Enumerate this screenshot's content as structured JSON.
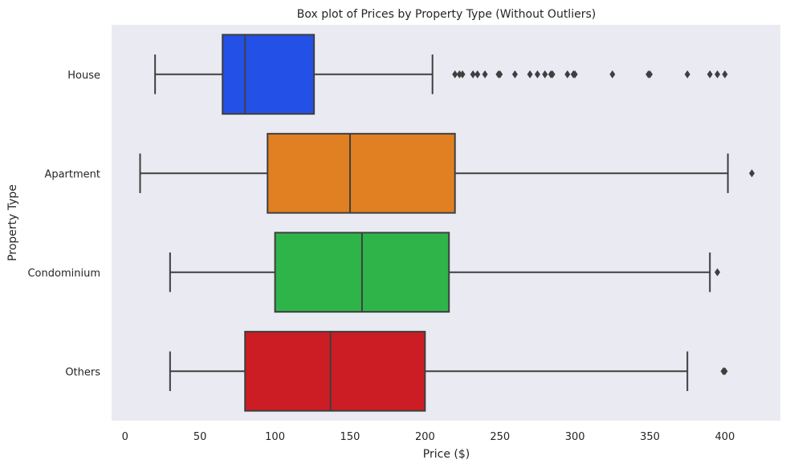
{
  "chart_data": {
    "type": "boxplot",
    "orientation": "horizontal",
    "title": "Box plot of Prices by Property Type (Without Outliers)",
    "xlabel": "Price ($)",
    "ylabel": "Property Type",
    "xlim": [
      -9,
      437
    ],
    "xticks": [
      0,
      50,
      100,
      150,
      200,
      250,
      300,
      350,
      400
    ],
    "grid": false,
    "background": "#eaeaf2",
    "line_color": "#3f3f3f",
    "categories": [
      "House",
      "Apartment",
      "Condominium",
      "Others"
    ],
    "boxes": [
      {
        "category": "House",
        "whisker_low": 20,
        "q1": 65,
        "median": 80,
        "q3": 126,
        "whisker_high": 205,
        "color": "#2350e6",
        "outliers": [
          220,
          223,
          225,
          232,
          235,
          240,
          249,
          250,
          260,
          270,
          275,
          280,
          284,
          285,
          295,
          299,
          300,
          325,
          349,
          350,
          375,
          390,
          395,
          400
        ]
      },
      {
        "category": "Apartment",
        "whisker_low": 10,
        "q1": 95,
        "median": 150,
        "q3": 220,
        "whisker_high": 402,
        "color": "#e08022",
        "outliers": [
          418
        ]
      },
      {
        "category": "Condominium",
        "whisker_low": 30,
        "q1": 100,
        "median": 158,
        "q3": 216,
        "whisker_high": 390,
        "color": "#2fb44a",
        "outliers": [
          395
        ]
      },
      {
        "category": "Others",
        "whisker_low": 30,
        "q1": 80,
        "median": 137,
        "q3": 200,
        "whisker_high": 375,
        "color": "#cc1c24",
        "outliers": [
          399,
          400
        ]
      }
    ]
  }
}
